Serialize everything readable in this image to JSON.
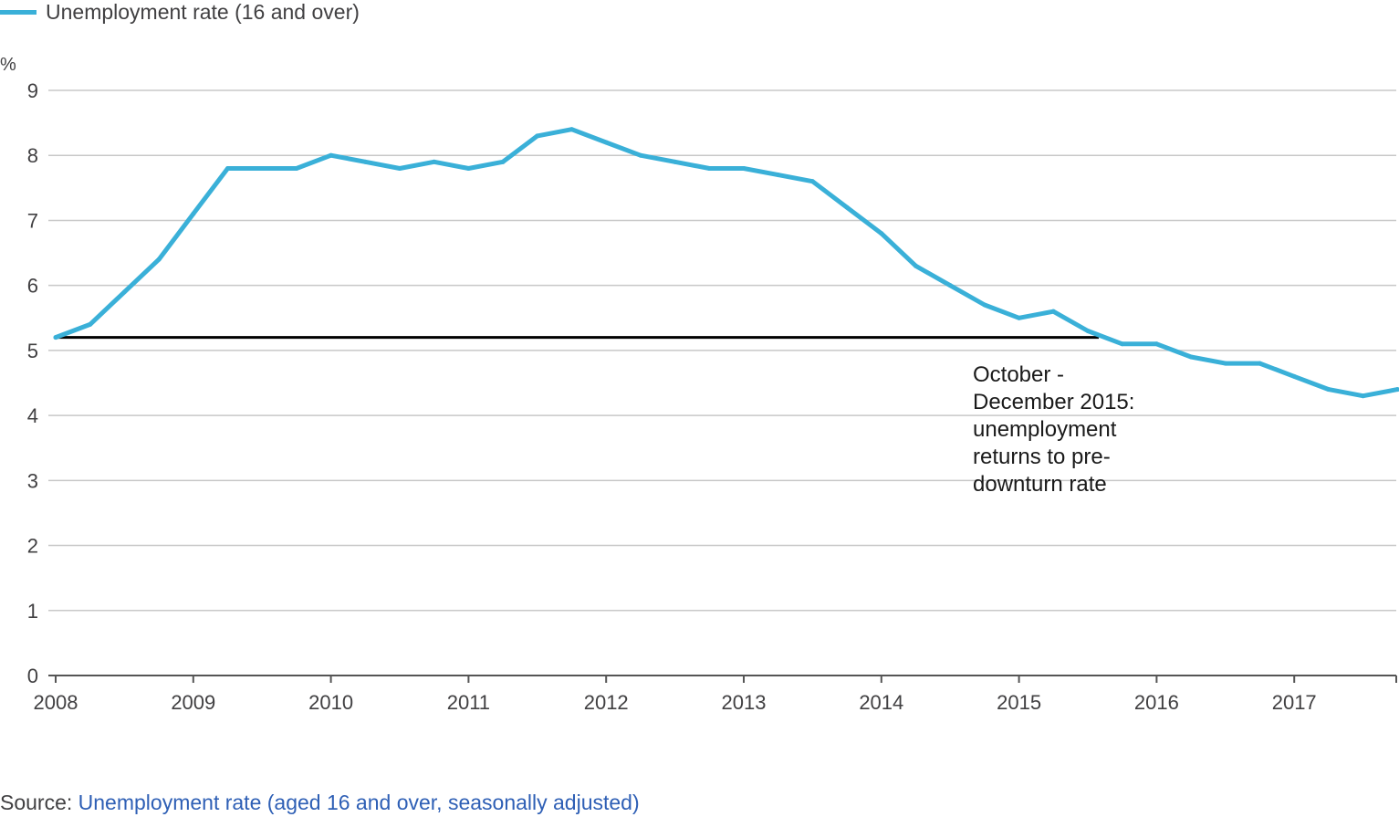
{
  "legend": {
    "label": "Unemployment rate (16 and over)",
    "color": "#3ab0d8"
  },
  "unit": "%",
  "annotation": {
    "lines": [
      "October -",
      "December 2015:",
      "unemployment",
      "returns to pre-",
      "downturn rate"
    ]
  },
  "source": {
    "prefix": "Source:",
    "link_text": "Unemployment rate (aged 16 and over, seasonally adjusted)"
  },
  "colors": {
    "series": "#3ab0d8",
    "reference": "#000000",
    "grid": "#c8c8c8",
    "axis": "#555555",
    "link": "#2e5fb5"
  },
  "chart_data": {
    "type": "line",
    "title": "",
    "xlabel": "",
    "ylabel": "%",
    "xlim": [
      2008,
      2017.75
    ],
    "ylim": [
      0,
      9
    ],
    "grid": true,
    "legend_position": "top-left",
    "xticks": [
      "2008",
      "2009",
      "2010",
      "2011",
      "2012",
      "2013",
      "2014",
      "2015",
      "2016",
      "2017"
    ],
    "yticks": [
      0,
      1,
      2,
      3,
      4,
      5,
      6,
      7,
      8,
      9
    ],
    "series": [
      {
        "name": "Unemployment rate (16 and over)",
        "x": [
          2008,
          2008.25,
          2008.5,
          2008.75,
          2009,
          2009.25,
          2009.5,
          2009.75,
          2010,
          2010.25,
          2010.5,
          2010.75,
          2011,
          2011.25,
          2011.5,
          2011.75,
          2012,
          2012.25,
          2012.5,
          2012.75,
          2013,
          2013.25,
          2013.5,
          2013.75,
          2014,
          2014.25,
          2014.5,
          2014.75,
          2015,
          2015.25,
          2015.5,
          2015.75,
          2016,
          2016.25,
          2016.5,
          2016.75,
          2017,
          2017.25,
          2017.5,
          2017.75
        ],
        "y": [
          5.2,
          5.4,
          5.9,
          6.4,
          7.1,
          7.8,
          7.8,
          7.8,
          8.0,
          7.9,
          7.8,
          7.9,
          7.8,
          7.9,
          8.3,
          8.4,
          8.2,
          8.0,
          7.9,
          7.8,
          7.8,
          7.7,
          7.6,
          7.2,
          6.8,
          6.3,
          6.0,
          5.7,
          5.5,
          5.6,
          5.3,
          5.1,
          5.1,
          4.9,
          4.8,
          4.8,
          4.6,
          4.4,
          4.3,
          4.4
        ]
      }
    ],
    "reference_line": {
      "y": 5.2,
      "x_start": 2008,
      "x_end": 2015.58
    }
  }
}
